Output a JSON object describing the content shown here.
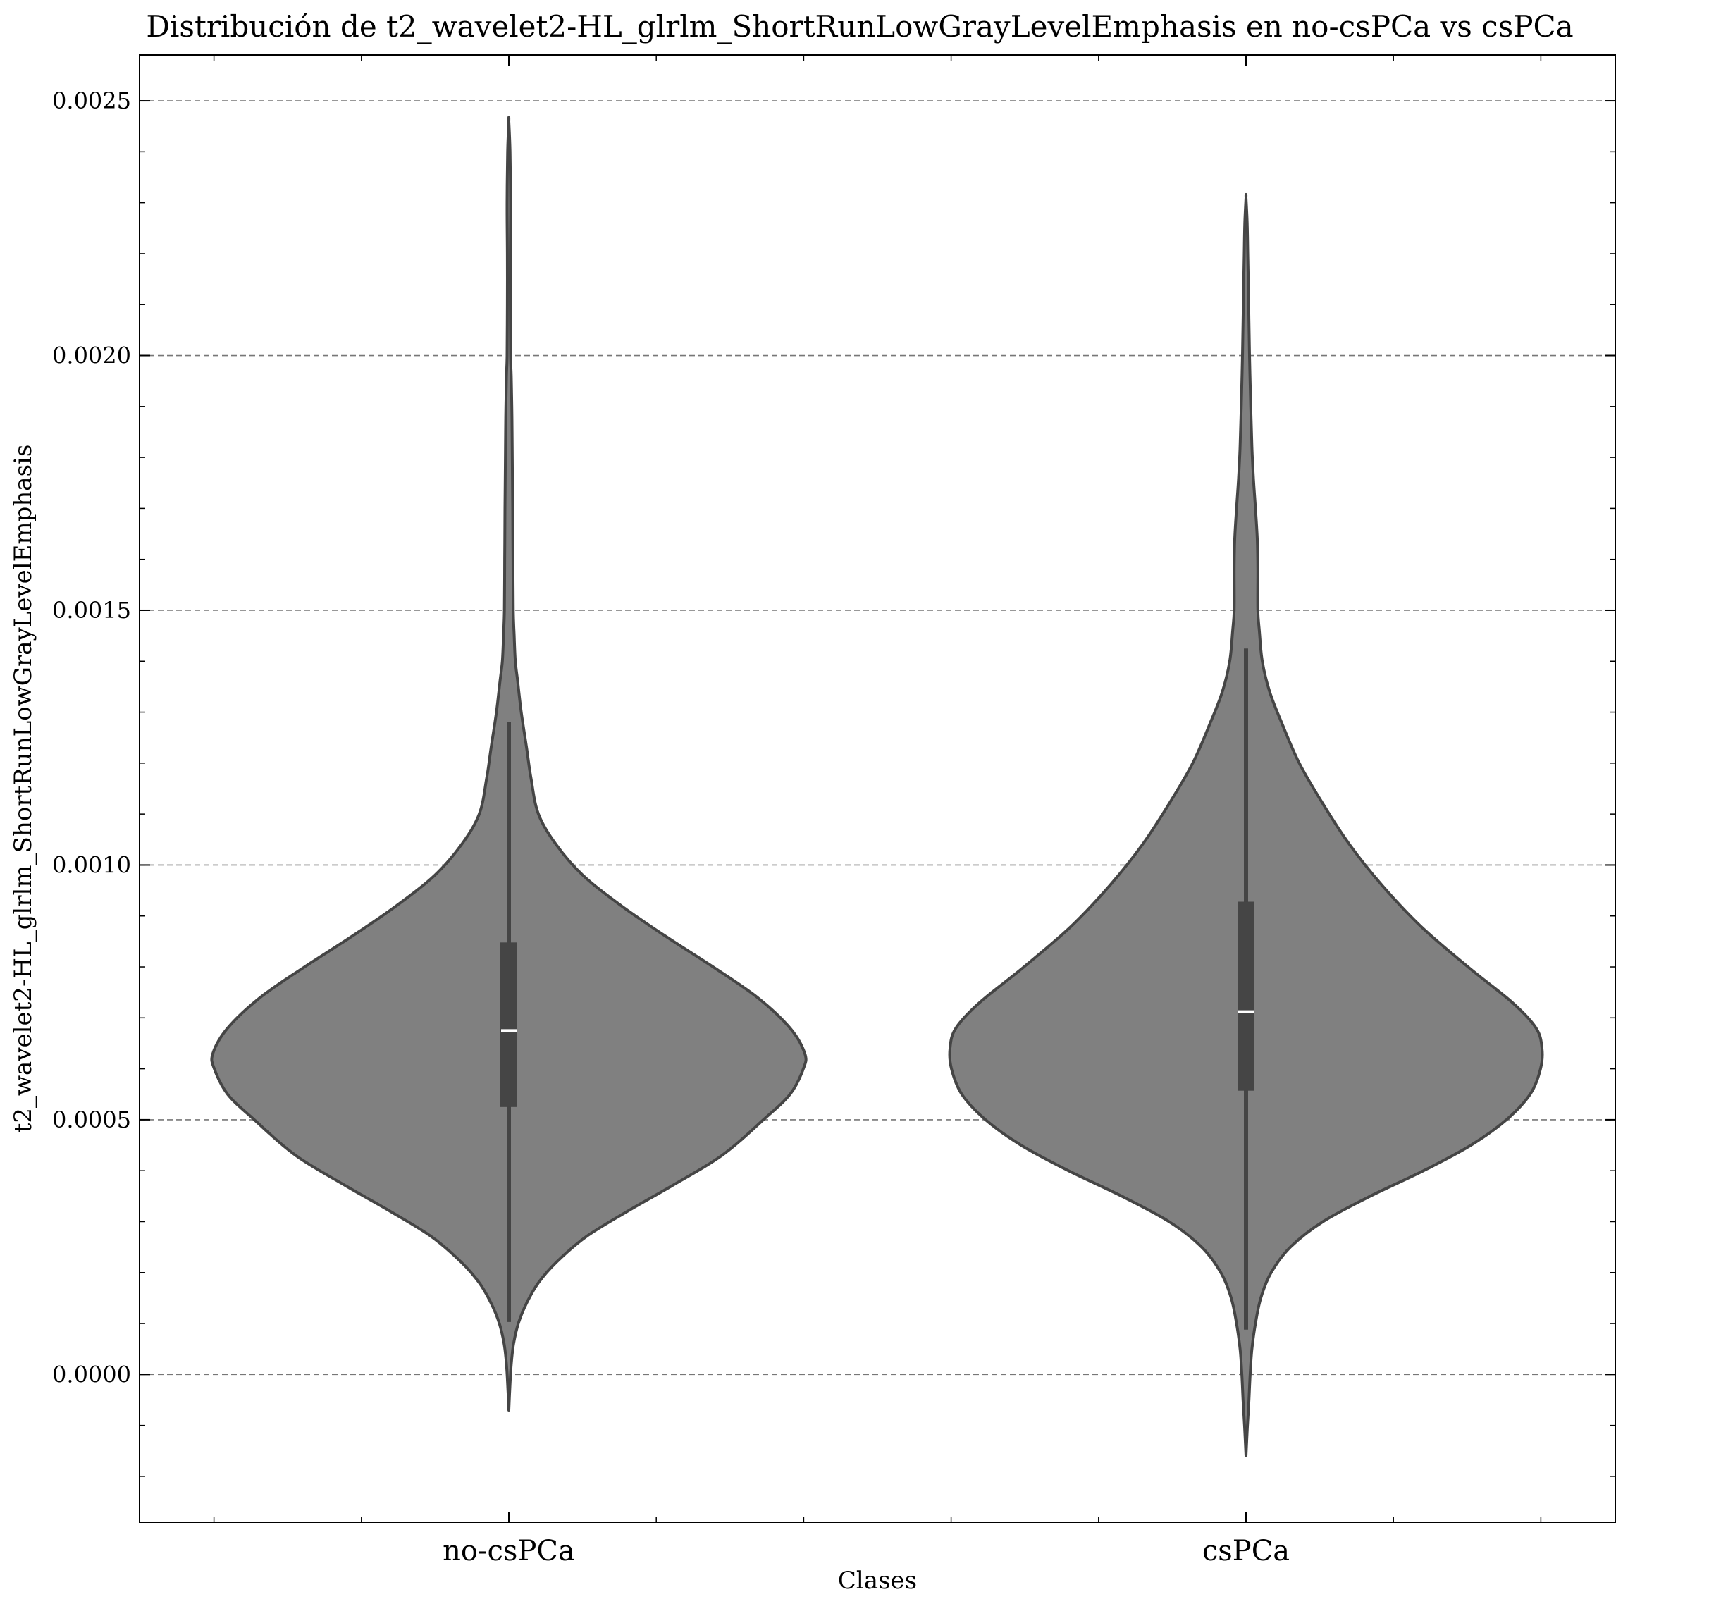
{
  "chart_data": {
    "type": "violin",
    "title": "Distribución de t2_wavelet2-HL_glrlm_ShortRunLowGrayLevelEmphasis en no-csPCa vs csPCa",
    "xlabel": "Clases",
    "ylabel": "t2_wavelet2-HL_glrlm_ShortRunLowGrayLevelEmphasis",
    "categories": [
      "no-csPCa",
      "csPCa"
    ],
    "ylim": [
      -0.00029,
      0.00259
    ],
    "yticks": [
      0.0,
      0.0005,
      0.001,
      0.0015,
      0.002,
      0.0025
    ],
    "ytick_labels": [
      "0.0000",
      "0.0005",
      "0.0010",
      "0.0015",
      "0.0020",
      "0.0025"
    ],
    "grid": "y-dashed",
    "fill_color": "#808080",
    "edge_color": "#454545",
    "box_color": "#454545",
    "median_color": "#ffffff",
    "violins": [
      {
        "category": "no-csPCa",
        "median": 0.000675,
        "q1": 0.000525,
        "q3": 0.000848,
        "whisker_low": 0.000103,
        "whisker_high": 0.00128,
        "density_profile": [
          [
            -7e-05,
            0.0
          ],
          [
            -3e-05,
            0.003
          ],
          [
            2e-05,
            0.008
          ],
          [
            6e-05,
            0.016
          ],
          [
            0.0001,
            0.032
          ],
          [
            0.00014,
            0.06
          ],
          [
            0.00018,
            0.1
          ],
          [
            0.00022,
            0.16
          ],
          [
            0.00027,
            0.26
          ],
          [
            0.00032,
            0.4
          ],
          [
            0.00037,
            0.55
          ],
          [
            0.00043,
            0.72
          ],
          [
            0.0005,
            0.86
          ],
          [
            0.00055,
            0.95
          ],
          [
            0.0006,
            0.995
          ],
          [
            0.00063,
            1.0
          ],
          [
            0.00068,
            0.95
          ],
          [
            0.00074,
            0.84
          ],
          [
            0.0008,
            0.69
          ],
          [
            0.00086,
            0.53
          ],
          [
            0.00092,
            0.38
          ],
          [
            0.00098,
            0.25
          ],
          [
            0.00104,
            0.16
          ],
          [
            0.0011,
            0.1
          ],
          [
            0.00117,
            0.075
          ],
          [
            0.00123,
            0.06
          ],
          [
            0.0013,
            0.042
          ],
          [
            0.00136,
            0.03
          ],
          [
            0.0014,
            0.022
          ],
          [
            0.00145,
            0.018
          ],
          [
            0.0015,
            0.015
          ],
          [
            0.0016,
            0.014
          ],
          [
            0.0017,
            0.013
          ],
          [
            0.00178,
            0.012
          ],
          [
            0.00185,
            0.011
          ],
          [
            0.0019,
            0.01
          ],
          [
            0.00196,
            0.008
          ],
          [
            0.002,
            0.006
          ],
          [
            0.0021,
            0.005
          ],
          [
            0.0022,
            0.005
          ],
          [
            0.0023,
            0.006
          ],
          [
            0.0024,
            0.004
          ],
          [
            0.00246,
            0.0
          ]
        ]
      },
      {
        "category": "csPCa",
        "median": 0.000712,
        "q1": 0.000557,
        "q3": 0.000928,
        "whisker_low": 8.8e-05,
        "whisker_high": 0.001425,
        "density_profile": [
          [
            -0.00016,
            0.0
          ],
          [
            -0.0001,
            0.005
          ],
          [
            -5e-05,
            0.01
          ],
          [
            0.0,
            0.014
          ],
          [
            5e-05,
            0.02
          ],
          [
            0.0001,
            0.032
          ],
          [
            0.00015,
            0.05
          ],
          [
            0.0002,
            0.085
          ],
          [
            0.00025,
            0.15
          ],
          [
            0.0003,
            0.26
          ],
          [
            0.00035,
            0.42
          ],
          [
            0.0004,
            0.6
          ],
          [
            0.00045,
            0.76
          ],
          [
            0.0005,
            0.88
          ],
          [
            0.00055,
            0.96
          ],
          [
            0.0006,
            0.995
          ],
          [
            0.00064,
            1.0
          ],
          [
            0.00068,
            0.98
          ],
          [
            0.00073,
            0.9
          ],
          [
            0.0008,
            0.75
          ],
          [
            0.00088,
            0.59
          ],
          [
            0.00096,
            0.46
          ],
          [
            0.00104,
            0.35
          ],
          [
            0.00112,
            0.26
          ],
          [
            0.0012,
            0.18
          ],
          [
            0.00128,
            0.12
          ],
          [
            0.00134,
            0.08
          ],
          [
            0.0014,
            0.055
          ],
          [
            0.00146,
            0.045
          ],
          [
            0.0015,
            0.04
          ],
          [
            0.00158,
            0.04
          ],
          [
            0.00164,
            0.038
          ],
          [
            0.0017,
            0.032
          ],
          [
            0.00176,
            0.025
          ],
          [
            0.00182,
            0.02
          ],
          [
            0.0019,
            0.016
          ],
          [
            0.002,
            0.012
          ],
          [
            0.0021,
            0.009
          ],
          [
            0.0022,
            0.006
          ],
          [
            0.00226,
            0.004
          ],
          [
            0.00231,
            0.0
          ]
        ]
      }
    ]
  }
}
